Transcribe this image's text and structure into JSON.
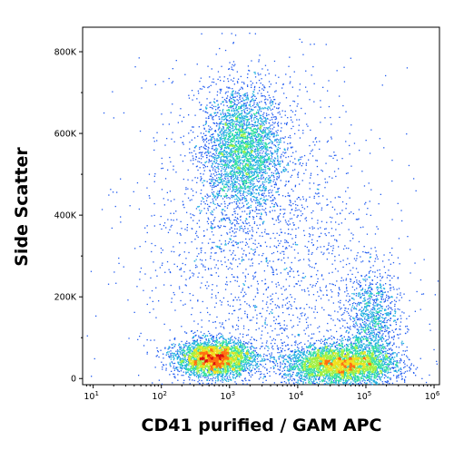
{
  "chart_data": {
    "type": "scatter",
    "subtype": "density-dot-plot (pseudocolor)",
    "xlabel": "CD41 purified / GAM APC",
    "ylabel": "Side Scatter",
    "x_scale": "log",
    "y_scale": "linear",
    "xlim": [
      7,
      1200000
    ],
    "ylim": [
      -15000,
      860000
    ],
    "x_ticks": [
      {
        "value": 10,
        "base": "10",
        "exp": "1"
      },
      {
        "value": 100,
        "base": "10",
        "exp": "2"
      },
      {
        "value": 1000,
        "base": "10",
        "exp": "3"
      },
      {
        "value": 10000,
        "base": "10",
        "exp": "4"
      },
      {
        "value": 100000,
        "base": "10",
        "exp": "5"
      },
      {
        "value": 1000000,
        "base": "10",
        "exp": "6"
      }
    ],
    "y_ticks": [
      {
        "value": 0,
        "label": "0"
      },
      {
        "value": 200000,
        "label": "200K"
      },
      {
        "value": 400000,
        "label": "400K"
      },
      {
        "value": 600000,
        "label": "600K"
      },
      {
        "value": 800000,
        "label": "800K"
      }
    ],
    "grid": false,
    "legend": "none",
    "density_colors": [
      "#1010d0",
      "#1e5af0",
      "#20b0e0",
      "#30e0a0",
      "#a0f040",
      "#f0e020",
      "#ff7010",
      "#e01010"
    ],
    "populations": [
      {
        "x_center": 1500,
        "x_spread_decades": 0.3,
        "y_center": 560000,
        "y_spread": 80000,
        "count": 3200
      },
      {
        "x_center": 600,
        "x_spread_decades": 0.28,
        "y_center": 50000,
        "y_spread": 22000,
        "count": 3400
      },
      {
        "x_center": 40000,
        "x_spread_decades": 0.4,
        "y_center": 35000,
        "y_spread": 25000,
        "count": 3800
      },
      {
        "x_center": 120000,
        "x_spread_decades": 0.2,
        "y_center": 130000,
        "y_spread": 70000,
        "count": 1200
      },
      {
        "x_center": 3000,
        "x_spread_decades": 0.9,
        "y_center": 300000,
        "y_spread": 220000,
        "count": 2200
      }
    ]
  }
}
